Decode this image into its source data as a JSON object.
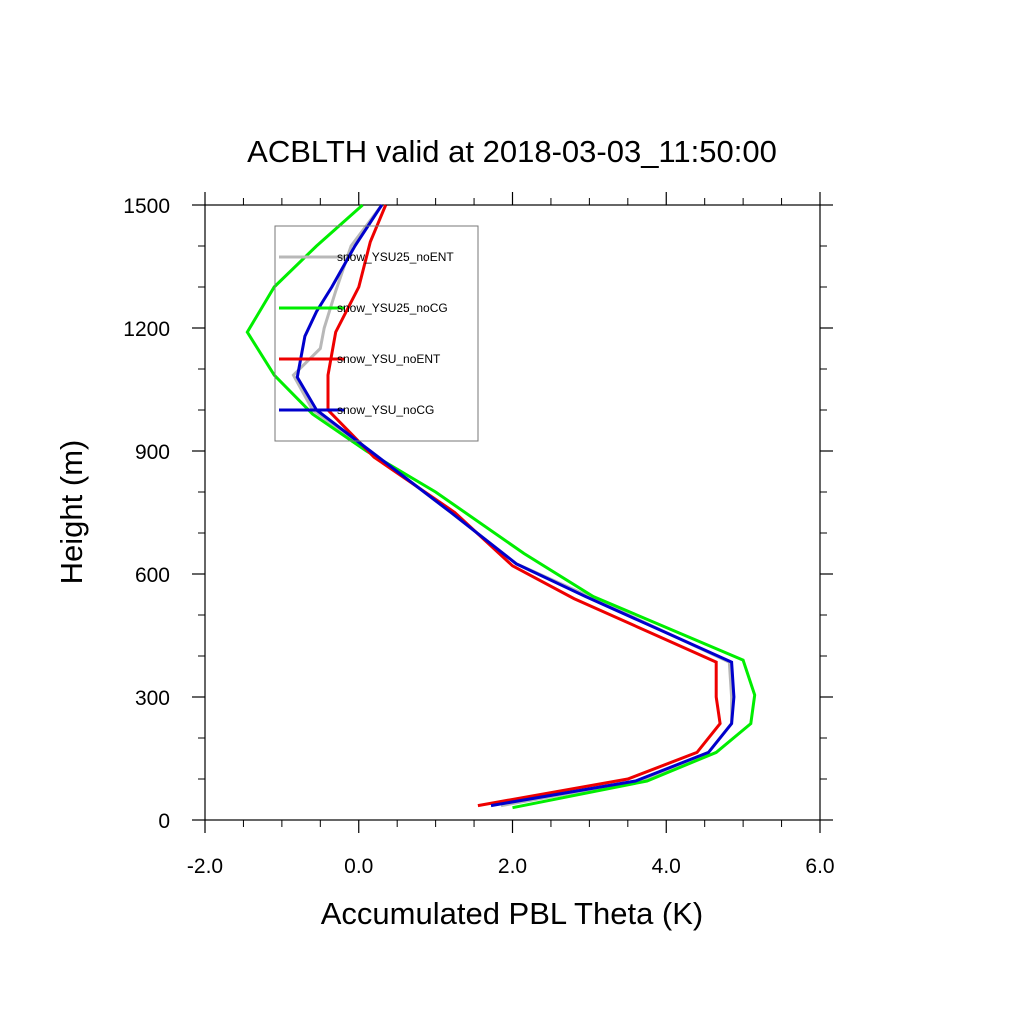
{
  "chart_data": {
    "type": "line",
    "title": "ACBLTH valid at 2018-03-03_11:50:00",
    "xlabel": "Accumulated PBL Theta (K)",
    "ylabel": "Height (m)",
    "xlim": [
      -2.0,
      6.0
    ],
    "ylim": [
      0,
      1500
    ],
    "xticks": [
      -2.0,
      0.0,
      2.0,
      4.0,
      6.0
    ],
    "xtick_labels": [
      "-2.0",
      "0.0",
      "2.0",
      "4.0",
      "6.0"
    ],
    "yticks": [
      0,
      300,
      600,
      900,
      1200,
      1500
    ],
    "ytick_labels": [
      "0",
      "300",
      "600",
      "900",
      "1200",
      "1500"
    ],
    "grid": false,
    "legend_position": "top-left",
    "series": [
      {
        "name": "snow_YSU25_noENT",
        "color": "#b8b8b8",
        "x": [
          1.85,
          3.65,
          4.55,
          4.85,
          4.85,
          4.82,
          3.0,
          2.05,
          1.2,
          0.15,
          -0.6,
          -0.85,
          -0.5,
          -0.45,
          -0.3,
          -0.1,
          0.3
        ],
        "y": [
          35,
          95,
          165,
          235,
          300,
          385,
          545,
          625,
          750,
          900,
          1000,
          1085,
          1150,
          1200,
          1290,
          1400,
          1500
        ]
      },
      {
        "name": "snow_YSU25_noCG",
        "color": "#00ee00",
        "x": [
          2.0,
          3.75,
          4.65,
          5.1,
          5.15,
          5.0,
          3.05,
          2.15,
          1.0,
          0.1,
          -0.6,
          -1.1,
          -1.45,
          -1.1,
          -0.55,
          0.05
        ],
        "y": [
          30,
          95,
          165,
          235,
          305,
          390,
          545,
          650,
          800,
          900,
          990,
          1085,
          1190,
          1300,
          1400,
          1500
        ]
      },
      {
        "name": "snow_YSU_noENT",
        "color": "#ee0000",
        "x": [
          1.55,
          3.5,
          4.4,
          4.7,
          4.65,
          4.65,
          2.8,
          2.0,
          1.25,
          0.2,
          -0.4,
          -0.4,
          -0.3,
          0.0,
          0.15,
          0.35
        ],
        "y": [
          35,
          100,
          165,
          235,
          300,
          385,
          540,
          620,
          750,
          885,
          1000,
          1085,
          1190,
          1300,
          1410,
          1500
        ]
      },
      {
        "name": "snow_YSU_noCG",
        "color": "#0000cc",
        "x": [
          1.72,
          3.6,
          4.55,
          4.85,
          4.88,
          4.85,
          2.95,
          2.05,
          1.2,
          0.15,
          -0.55,
          -0.8,
          -0.7,
          -0.55,
          -0.35,
          -0.05,
          0.3
        ],
        "y": [
          35,
          95,
          165,
          235,
          300,
          385,
          545,
          625,
          750,
          900,
          1000,
          1080,
          1180,
          1240,
          1300,
          1400,
          1500
        ]
      }
    ]
  }
}
